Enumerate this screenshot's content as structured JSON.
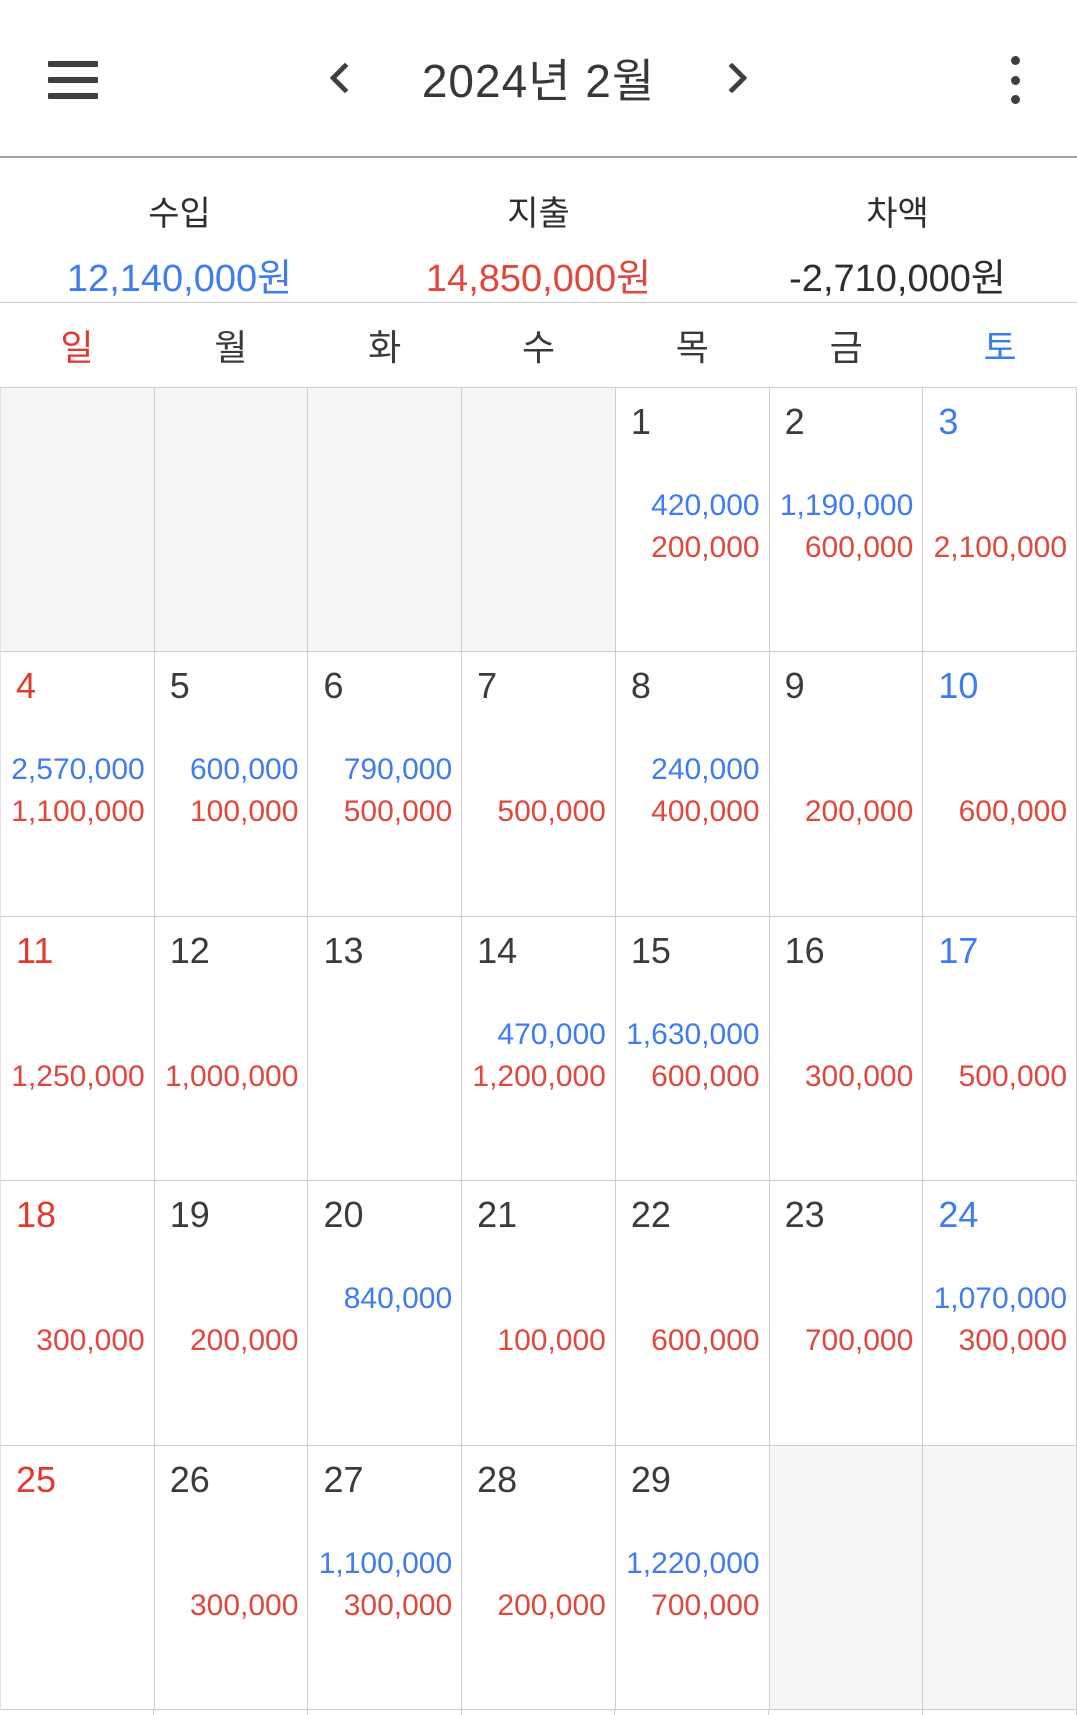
{
  "header": {
    "title": "2024년 2월",
    "menu_icon": "hamburger-icon",
    "prev_icon": "chevron-left-icon",
    "next_icon": "chevron-right-icon",
    "more_icon": "kebab-menu-icon"
  },
  "summary": {
    "income_label": "수입",
    "income_value": "12,140,000원",
    "expense_label": "지출",
    "expense_value": "14,850,000원",
    "balance_label": "차액",
    "balance_value": "-2,710,000원"
  },
  "weekdays": [
    {
      "label": "일",
      "type": "sun"
    },
    {
      "label": "월",
      "type": "weekday"
    },
    {
      "label": "화",
      "type": "weekday"
    },
    {
      "label": "수",
      "type": "weekday"
    },
    {
      "label": "목",
      "type": "weekday"
    },
    {
      "label": "금",
      "type": "weekday"
    },
    {
      "label": "토",
      "type": "sat"
    }
  ],
  "colors": {
    "income_blue": "#3e7cf0",
    "expense_red": "#e2473c",
    "sunday_red": "#e5382d",
    "saturday_blue": "#3e7cf0",
    "empty_cell_gray": "#f6f6f6"
  },
  "calendar": {
    "weeks": [
      [
        {
          "empty": true
        },
        {
          "empty": true
        },
        {
          "empty": true
        },
        {
          "empty": true
        },
        {
          "day": "1",
          "type": "weekday",
          "income": "420,000",
          "expense": "200,000"
        },
        {
          "day": "2",
          "type": "weekday",
          "income": "1,190,000",
          "expense": "600,000"
        },
        {
          "day": "3",
          "type": "sat",
          "expense": "2,100,000"
        }
      ],
      [
        {
          "day": "4",
          "type": "sun",
          "income": "2,570,000",
          "expense": "1,100,000"
        },
        {
          "day": "5",
          "type": "weekday",
          "income": "600,000",
          "expense": "100,000"
        },
        {
          "day": "6",
          "type": "weekday",
          "income": "790,000",
          "expense": "500,000"
        },
        {
          "day": "7",
          "type": "weekday",
          "expense": "500,000"
        },
        {
          "day": "8",
          "type": "weekday",
          "income": "240,000",
          "expense": "400,000"
        },
        {
          "day": "9",
          "type": "weekday",
          "expense": "200,000"
        },
        {
          "day": "10",
          "type": "sat",
          "expense": "600,000"
        }
      ],
      [
        {
          "day": "11",
          "type": "sun",
          "expense": "1,250,000"
        },
        {
          "day": "12",
          "type": "weekday",
          "expense": "1,000,000"
        },
        {
          "day": "13",
          "type": "weekday"
        },
        {
          "day": "14",
          "type": "weekday",
          "income": "470,000",
          "expense": "1,200,000"
        },
        {
          "day": "15",
          "type": "weekday",
          "income": "1,630,000",
          "expense": "600,000"
        },
        {
          "day": "16",
          "type": "weekday",
          "expense": "300,000"
        },
        {
          "day": "17",
          "type": "sat",
          "expense": "500,000"
        }
      ],
      [
        {
          "day": "18",
          "type": "sun",
          "expense": "300,000"
        },
        {
          "day": "19",
          "type": "weekday",
          "expense": "200,000"
        },
        {
          "day": "20",
          "type": "weekday",
          "income": "840,000"
        },
        {
          "day": "21",
          "type": "weekday",
          "expense": "100,000"
        },
        {
          "day": "22",
          "type": "weekday",
          "expense": "600,000"
        },
        {
          "day": "23",
          "type": "weekday",
          "expense": "700,000"
        },
        {
          "day": "24",
          "type": "sat",
          "income": "1,070,000",
          "expense": "300,000"
        }
      ],
      [
        {
          "day": "25",
          "type": "sun"
        },
        {
          "day": "26",
          "type": "weekday",
          "expense": "300,000"
        },
        {
          "day": "27",
          "type": "weekday",
          "income": "1,100,000",
          "expense": "300,000"
        },
        {
          "day": "28",
          "type": "weekday",
          "expense": "200,000"
        },
        {
          "day": "29",
          "type": "weekday",
          "income": "1,220,000",
          "expense": "700,000"
        },
        {
          "empty": true
        },
        {
          "empty": true
        }
      ]
    ]
  }
}
